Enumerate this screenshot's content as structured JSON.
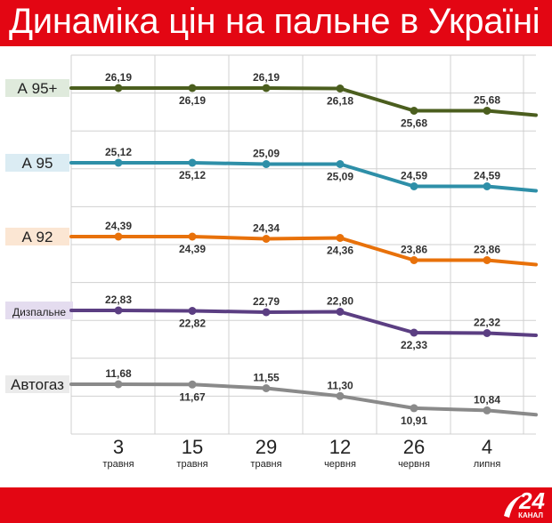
{
  "title": "Динаміка цін на пальне в Україні",
  "logo": {
    "number": "24",
    "text": "КАНАЛ"
  },
  "colors": {
    "brand": "#e30613",
    "grid": "#d0d0d0"
  },
  "chart_data": {
    "type": "line",
    "title": "Динаміка цін на пальне в Україні",
    "xlabel": "",
    "ylabel": "",
    "grid": true,
    "legend": "left",
    "x_ticks": [
      {
        "num": "3",
        "month": "травня"
      },
      {
        "num": "15",
        "month": "травня"
      },
      {
        "num": "29",
        "month": "травня"
      },
      {
        "num": "12",
        "month": "червня"
      },
      {
        "num": "26",
        "month": "червня"
      },
      {
        "num": "4",
        "month": "липня"
      }
    ],
    "series": [
      {
        "name": "А 95+",
        "color": "#4b5e1e",
        "label_bg": "#dfeadc",
        "values": [
          26.19,
          26.19,
          26.19,
          26.18,
          25.68,
          25.68
        ],
        "end_value": 25.58,
        "labels": [
          "26,19",
          "26,19",
          "26,19",
          "26,18",
          "25,68",
          "25,68"
        ]
      },
      {
        "name": "А 95",
        "color": "#2e8fa8",
        "label_bg": "#dbecf3",
        "values": [
          25.12,
          25.12,
          25.09,
          25.09,
          24.59,
          24.59
        ],
        "end_value": 24.49,
        "labels": [
          "25,12",
          "25,12",
          "25,09",
          "25,09",
          "24,59",
          "24,59"
        ]
      },
      {
        "name": "А 92",
        "color": "#e8710a",
        "label_bg": "#fbe6d3",
        "values": [
          24.39,
          24.39,
          24.34,
          24.36,
          23.86,
          23.86
        ],
        "end_value": 23.76,
        "labels": [
          "24,39",
          "24,39",
          "24,34",
          "24,36",
          "23,86",
          "23,86"
        ]
      },
      {
        "name": "Дизпальне",
        "color": "#5b3e82",
        "label_bg": "#e4dcef",
        "values": [
          22.83,
          22.82,
          22.79,
          22.8,
          22.33,
          22.32
        ],
        "end_value": 22.27,
        "labels": [
          "22,83",
          "22,82",
          "22,79",
          "22,80",
          "22,33",
          "22,32"
        ]
      },
      {
        "name": "Автогаз",
        "color": "#8a8a8a",
        "label_bg": "#ebebeb",
        "values": [
          11.68,
          11.67,
          11.55,
          11.3,
          10.91,
          10.84
        ],
        "end_value": 10.7,
        "labels": [
          "11,68",
          "11,67",
          "11,55",
          "11,30",
          "10,91",
          "10,84"
        ]
      }
    ]
  }
}
